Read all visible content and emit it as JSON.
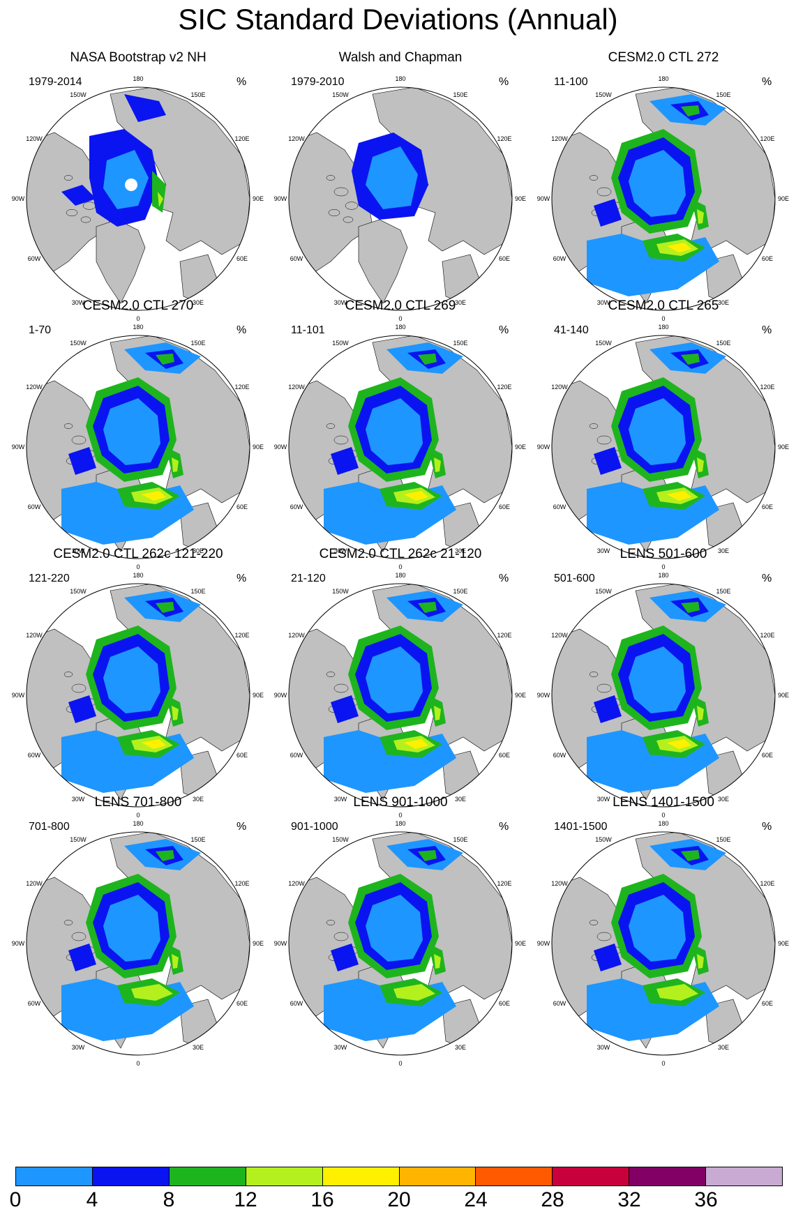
{
  "title": "SIC Standard Deviations (Annual)",
  "units_symbol": "%",
  "longitude_labels": [
    "180",
    "150E",
    "120E",
    "90E",
    "60E",
    "30E",
    "0",
    "30W",
    "60W",
    "90W",
    "120W",
    "150W"
  ],
  "colors": {
    "land": "#c0c0c0",
    "ocean": "#ffffff",
    "coast": "#000000"
  },
  "legend": {
    "ticks": [
      "0",
      "4",
      "8",
      "12",
      "16",
      "20",
      "24",
      "28",
      "32",
      "36"
    ],
    "colors": [
      "#1e96ff",
      "#0a14f0",
      "#1eb41e",
      "#b4f01e",
      "#fff000",
      "#ffb400",
      "#ff5a00",
      "#c8003c",
      "#820064",
      "#c8aad2"
    ]
  },
  "panels": [
    {
      "title": "NASA Bootstrap v2 NH",
      "period": "1979-2014",
      "style": "obs1"
    },
    {
      "title": "Walsh and Chapman",
      "period": "1979-2010",
      "style": "obs2"
    },
    {
      "title": "CESM2.0 CTL 272",
      "period": "11-100",
      "style": "model"
    },
    {
      "title": "CESM2.0 CTL 270",
      "period": "1-70",
      "style": "model"
    },
    {
      "title": "CESM2.0 CTL 269",
      "period": "11-101",
      "style": "model"
    },
    {
      "title": "CESM2.0 CTL 265",
      "period": "41-140",
      "style": "model"
    },
    {
      "title": "CESM2.0 CTL 262c 121-220",
      "period": "121-220",
      "style": "model"
    },
    {
      "title": "CESM2.0 CTL 262c 21-120",
      "period": "21-120",
      "style": "model"
    },
    {
      "title": "LENS 501-600",
      "period": "501-600",
      "style": "model"
    },
    {
      "title": "LENS 701-800",
      "period": "701-800",
      "style": "lens"
    },
    {
      "title": "LENS 901-1000",
      "period": "901-1000",
      "style": "lens"
    },
    {
      "title": "LENS 1401-1500",
      "period": "1401-1500",
      "style": "lens"
    }
  ]
}
